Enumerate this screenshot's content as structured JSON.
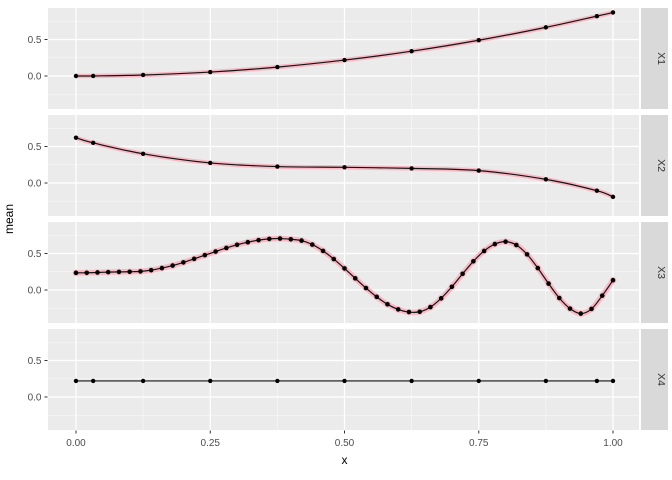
{
  "figure": {
    "kind": "ggplot2 faceted scatter-line plot",
    "background": "#FFFFFF",
    "style": {
      "panel_bg": "#EBEBEB",
      "strip_bg": "#D9D9D9",
      "strip_text_color": "#333333",
      "grid_major_color": "#FFFFFF",
      "grid_minor_color": "#FFFFFF",
      "ribbon_color": "#F8B9C4",
      "line_color": "#141414",
      "point_color": "#000000",
      "axis_text_color": "#4D4D4D",
      "tick_mark_color": "#333333",
      "axis_title_color": "#000000"
    }
  },
  "chart_data": {
    "type": "line",
    "title": "",
    "xlabel": "x",
    "ylabel": "mean",
    "x_range": [
      0,
      1
    ],
    "panel_y_domain": [
      -0.452,
      0.932
    ],
    "grid": true,
    "legend": false,
    "x_ticks": [
      0,
      0.25,
      0.5,
      0.75,
      1
    ],
    "x_tick_labels": [
      "0.00",
      "0.25",
      "0.50",
      "0.75",
      "1.00"
    ],
    "x_minor_ticks": [
      0.125,
      0.375,
      0.625,
      0.875
    ],
    "y_ticks": [
      0,
      0.5
    ],
    "y_tick_labels": [
      "0.0",
      "0.5"
    ],
    "y_minor_ticks": [
      -0.25,
      0.25,
      0.75
    ],
    "facet_labels": [
      "X1",
      "X2",
      "X3",
      "X4"
    ],
    "facets": [
      {
        "label": "X1",
        "ribbon": true,
        "x": [
          0,
          0.032,
          0.125,
          0.25,
          0.375,
          0.5,
          0.625,
          0.75,
          0.875,
          0.97,
          1
        ],
        "mean": [
          0,
          0.001,
          0.014,
          0.054,
          0.122,
          0.218,
          0.34,
          0.49,
          0.666,
          0.82,
          0.87
        ]
      },
      {
        "label": "X2",
        "ribbon": true,
        "x": [
          0,
          0.032,
          0.125,
          0.25,
          0.375,
          0.5,
          0.625,
          0.75,
          0.875,
          0.97,
          1
        ],
        "mean": [
          0.62,
          0.55,
          0.4,
          0.275,
          0.225,
          0.215,
          0.2,
          0.17,
          0.05,
          -0.105,
          -0.19
        ]
      },
      {
        "label": "X3",
        "ribbon": true,
        "dense": true,
        "x": [
          0,
          0.02,
          0.04,
          0.06,
          0.08,
          0.1,
          0.12,
          0.14,
          0.16,
          0.18,
          0.2,
          0.22,
          0.24,
          0.26,
          0.28,
          0.3,
          0.32,
          0.34,
          0.36,
          0.38,
          0.4,
          0.42,
          0.44,
          0.46,
          0.48,
          0.5,
          0.52,
          0.54,
          0.56,
          0.58,
          0.6,
          0.62,
          0.64,
          0.66,
          0.68,
          0.7,
          0.72,
          0.74,
          0.76,
          0.78,
          0.8,
          0.82,
          0.84,
          0.86,
          0.88,
          0.9,
          0.92,
          0.94,
          0.96,
          0.98,
          1
        ],
        "mean": [
          0.235,
          0.236,
          0.24,
          0.245,
          0.248,
          0.25,
          0.255,
          0.272,
          0.3,
          0.335,
          0.378,
          0.427,
          0.477,
          0.527,
          0.576,
          0.62,
          0.655,
          0.683,
          0.7,
          0.705,
          0.695,
          0.677,
          0.622,
          0.536,
          0.424,
          0.296,
          0.16,
          0.027,
          -0.094,
          -0.196,
          -0.266,
          -0.302,
          -0.298,
          -0.234,
          -0.114,
          0.044,
          0.222,
          0.393,
          0.535,
          0.629,
          0.662,
          0.616,
          0.488,
          0.3,
          0.088,
          -0.11,
          -0.255,
          -0.323,
          -0.259,
          -0.077,
          0.134
        ]
      },
      {
        "label": "X4",
        "ribbon": false,
        "x": [
          0,
          0.032,
          0.125,
          0.25,
          0.375,
          0.5,
          0.625,
          0.75,
          0.875,
          0.97,
          1
        ],
        "mean": [
          0.22,
          0.22,
          0.22,
          0.22,
          0.22,
          0.22,
          0.22,
          0.22,
          0.22,
          0.22,
          0.22
        ]
      }
    ]
  }
}
